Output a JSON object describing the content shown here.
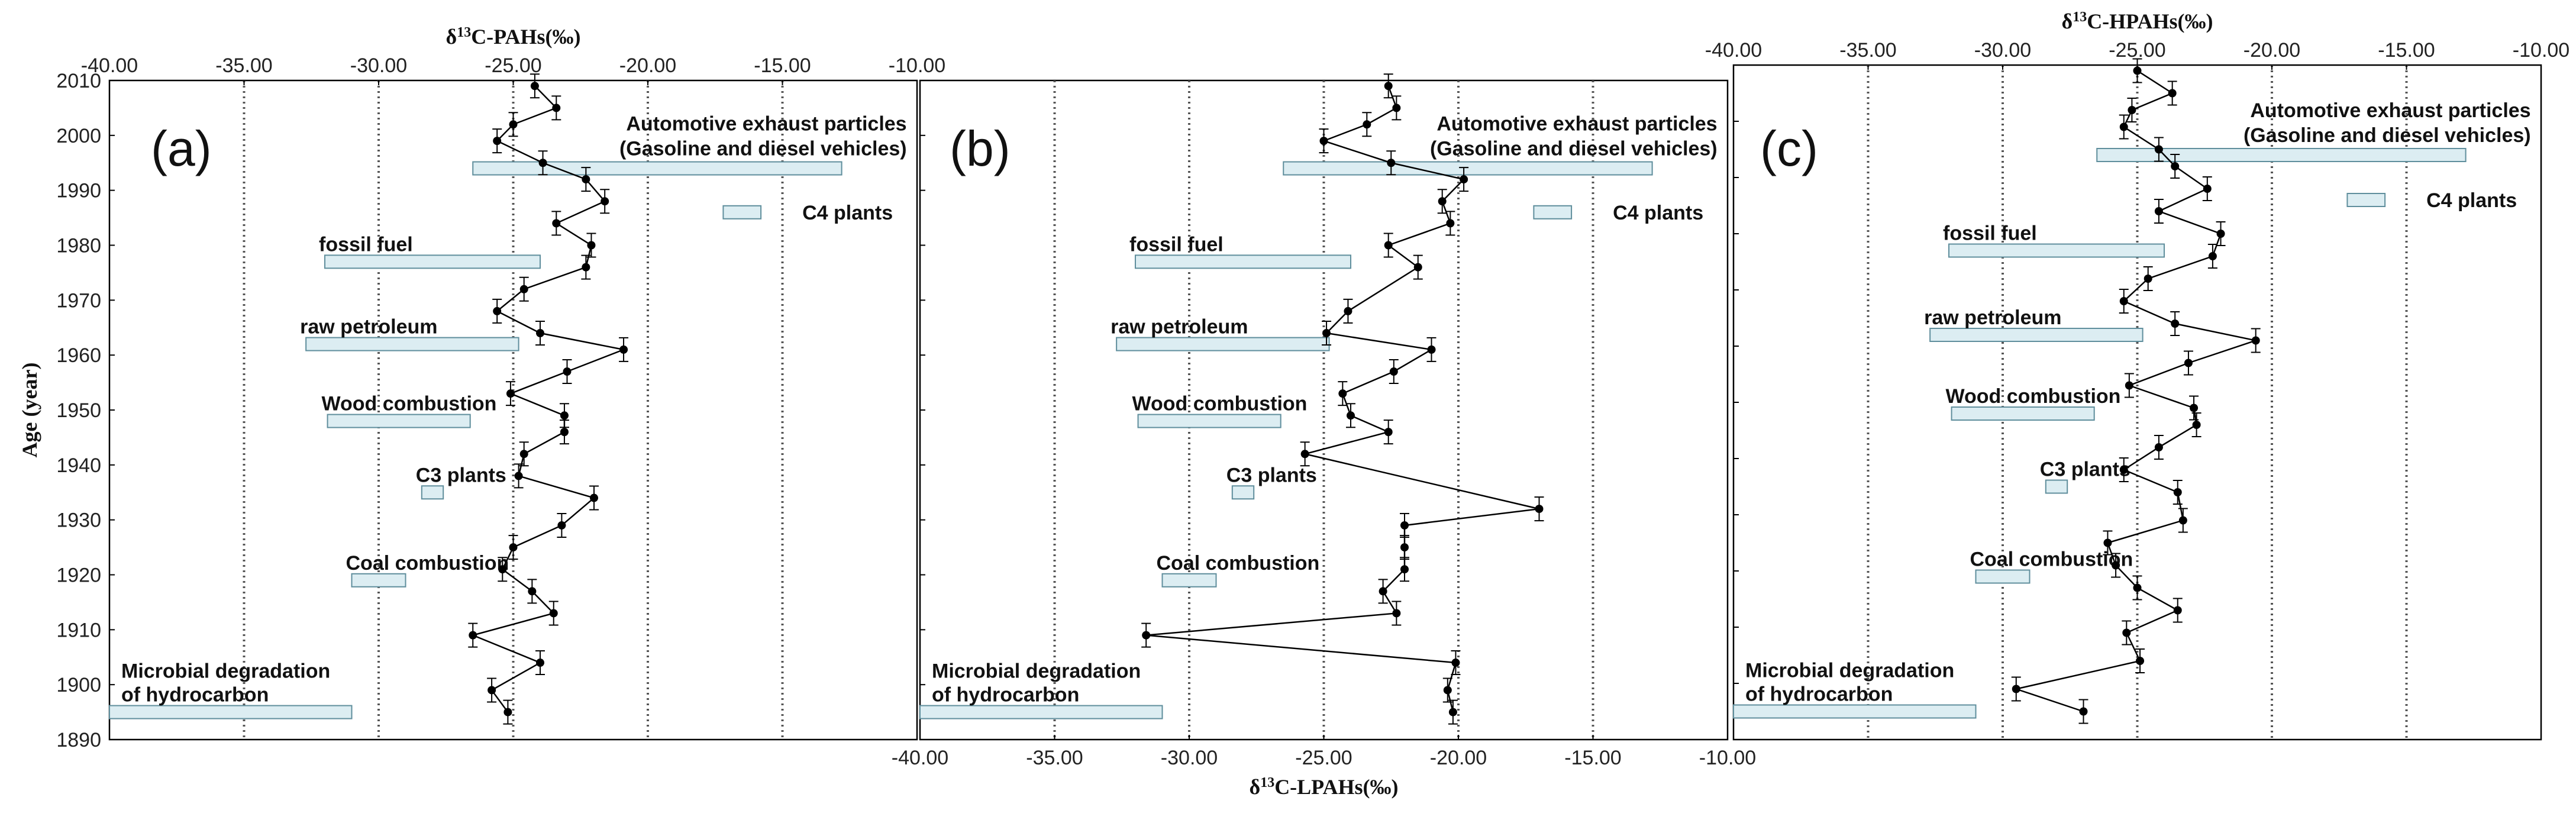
{
  "figure": {
    "y_axis_label": "Age (year)",
    "x_label_top_a": "δ13C-PAHs(‰)",
    "x_label_bottom_b": "δ13C-LPAHs(‰)",
    "x_label_top_c": "δ13C-HPAHs(‰)"
  },
  "colors": {
    "source_fill": "#dcedf2",
    "source_stroke": "#5f8e9c",
    "series": "#000000",
    "gridline": "#555555"
  },
  "chart_data": [
    {
      "type": "line",
      "panel": "(a)",
      "xlabel": "δ13C-PAHs(‰)",
      "xlabel_position": "top",
      "ylabel": "Age (year)",
      "xlim": [
        -40,
        -10
      ],
      "ylim": [
        1890,
        2010
      ],
      "x_ticks": [
        "-40.00",
        "-35.00",
        "-30.00",
        "-25.00",
        "-20.00",
        "-15.00",
        "-10.00"
      ],
      "y_ticks": [
        "2010",
        "2000",
        "1990",
        "1980",
        "1970",
        "1960",
        "1950",
        "1940",
        "1930",
        "1920",
        "1910",
        "1900",
        "1890"
      ],
      "series": [
        {
          "name": "δ13C-PAHs",
          "points": [
            {
              "year": 2009,
              "value": -24.2,
              "err": 0.3
            },
            {
              "year": 2005,
              "value": -23.4,
              "err": 0.4
            },
            {
              "year": 2002,
              "value": -25.0,
              "err": 0.3
            },
            {
              "year": 1999,
              "value": -25.6,
              "err": 0.3
            },
            {
              "year": 1995,
              "value": -23.9,
              "err": 0.3
            },
            {
              "year": 1992,
              "value": -22.3,
              "err": 0.3
            },
            {
              "year": 1988,
              "value": -21.6,
              "err": 0.4
            },
            {
              "year": 1984,
              "value": -23.4,
              "err": 0.3
            },
            {
              "year": 1980,
              "value": -22.1,
              "err": 0.3
            },
            {
              "year": 1976,
              "value": -22.3,
              "err": 0.3
            },
            {
              "year": 1972,
              "value": -24.6,
              "err": 0.3
            },
            {
              "year": 1968,
              "value": -25.6,
              "err": 0.3
            },
            {
              "year": 1964,
              "value": -24.0,
              "err": 0.4
            },
            {
              "year": 1961,
              "value": -20.9,
              "err": 0.4
            },
            {
              "year": 1957,
              "value": -23.0,
              "err": 0.3
            },
            {
              "year": 1953,
              "value": -25.1,
              "err": 0.3
            },
            {
              "year": 1949,
              "value": -23.1,
              "err": 0.3
            },
            {
              "year": 1946,
              "value": -23.1,
              "err": 0.3
            },
            {
              "year": 1942,
              "value": -24.6,
              "err": 0.3
            },
            {
              "year": 1938,
              "value": -24.8,
              "err": 0.3
            },
            {
              "year": 1934,
              "value": -22.0,
              "err": 0.4
            },
            {
              "year": 1929,
              "value": -23.2,
              "err": 0.4
            },
            {
              "year": 1925,
              "value": -25.0,
              "err": 0.3
            },
            {
              "year": 1921,
              "value": -25.4,
              "err": 0.3
            },
            {
              "year": 1917,
              "value": -24.3,
              "err": 0.3
            },
            {
              "year": 1913,
              "value": -23.5,
              "err": 0.4
            },
            {
              "year": 1909,
              "value": -26.5,
              "err": 0.4
            },
            {
              "year": 1904,
              "value": -24.0,
              "err": 0.4
            },
            {
              "year": 1899,
              "value": -25.8,
              "err": 0.3
            },
            {
              "year": 1895,
              "value": -25.2,
              "err": 0.3
            }
          ]
        }
      ],
      "sources": [
        {
          "label": "Automotive exhaust particles (Gasoline and diesel vehicles)",
          "label_lines": [
            "Automotive exhaust particles",
            "(Gasoline and diesel vehicles)"
          ],
          "x_min": -26.5,
          "x_max": -12.8,
          "year": 1994,
          "label_anchor": "right-above"
        },
        {
          "label": "C4 plants",
          "label_lines": [
            "C4 plants"
          ],
          "x_min": -17.2,
          "x_max": -15.8,
          "year": 1986,
          "label_anchor": "right-of"
        },
        {
          "label": "fossil fuel",
          "label_lines": [
            "fossil fuel"
          ],
          "x_min": -32.0,
          "x_max": -24.0,
          "year": 1977,
          "label_anchor": "left-above"
        },
        {
          "label": "raw petroleum",
          "label_lines": [
            "raw petroleum"
          ],
          "x_min": -32.7,
          "x_max": -24.8,
          "year": 1962,
          "label_anchor": "left-above"
        },
        {
          "label": "Wood combustion",
          "label_lines": [
            "Wood combustion"
          ],
          "x_min": -31.9,
          "x_max": -26.6,
          "year": 1948,
          "label_anchor": "left-above"
        },
        {
          "label": "C3 plants",
          "label_lines": [
            "C3 plants"
          ],
          "x_min": -28.4,
          "x_max": -27.6,
          "year": 1935,
          "label_anchor": "left-above"
        },
        {
          "label": "Coal combustion",
          "label_lines": [
            "Coal combustion"
          ],
          "x_min": -31.0,
          "x_max": -29.0,
          "year": 1919,
          "label_anchor": "left-above"
        },
        {
          "label": "Microbial degradation of hydrocarbon",
          "label_lines": [
            "Microbial degradation",
            "of hydrocarbon"
          ],
          "x_min": -40.0,
          "x_max": -31.0,
          "year": 1895,
          "label_anchor": "left-above"
        }
      ]
    },
    {
      "type": "line",
      "panel": "(b)",
      "xlabel": "δ13C-LPAHs(‰)",
      "xlabel_position": "bottom",
      "xlim": [
        -40,
        -10
      ],
      "ylim": [
        1890,
        2010
      ],
      "x_ticks": [
        "-40.00",
        "-35.00",
        "-30.00",
        "-25.00",
        "-20.00",
        "-15.00",
        "-10.00"
      ],
      "series": [
        {
          "name": "δ13C-LPAHs",
          "points": [
            {
              "year": 2009,
              "value": -22.6,
              "err": 0.3
            },
            {
              "year": 2005,
              "value": -22.3,
              "err": 0.4
            },
            {
              "year": 2002,
              "value": -23.4,
              "err": 0.3
            },
            {
              "year": 1999,
              "value": -25.0,
              "err": 0.3
            },
            {
              "year": 1995,
              "value": -22.5,
              "err": 0.3
            },
            {
              "year": 1992,
              "value": -19.8,
              "err": 0.3
            },
            {
              "year": 1988,
              "value": -20.6,
              "err": 0.3
            },
            {
              "year": 1984,
              "value": -20.3,
              "err": 0.3
            },
            {
              "year": 1980,
              "value": -22.6,
              "err": 0.3
            },
            {
              "year": 1976,
              "value": -21.5,
              "err": 0.3
            },
            {
              "year": 1968,
              "value": -24.1,
              "err": 0.3
            },
            {
              "year": 1964,
              "value": -24.9,
              "err": 0.3
            },
            {
              "year": 1961,
              "value": -21.0,
              "err": 0.4
            },
            {
              "year": 1957,
              "value": -22.4,
              "err": 0.4
            },
            {
              "year": 1953,
              "value": -24.3,
              "err": 0.3
            },
            {
              "year": 1949,
              "value": -24.0,
              "err": 0.3
            },
            {
              "year": 1946,
              "value": -22.6,
              "err": 0.4
            },
            {
              "year": 1942,
              "value": -25.7,
              "err": 0.3
            },
            {
              "year": 1932,
              "value": -17.0,
              "err": 0.4
            },
            {
              "year": 1929,
              "value": -22.0,
              "err": 0.3
            },
            {
              "year": 1925,
              "value": -22.0,
              "err": 0.3
            },
            {
              "year": 1921,
              "value": -22.0,
              "err": 0.3
            },
            {
              "year": 1917,
              "value": -22.8,
              "err": 0.3
            },
            {
              "year": 1913,
              "value": -22.3,
              "err": 0.4
            },
            {
              "year": 1909,
              "value": -31.6,
              "err": 0.4
            },
            {
              "year": 1904,
              "value": -20.1,
              "err": 0.3
            },
            {
              "year": 1899,
              "value": -20.4,
              "err": 0.3
            },
            {
              "year": 1895,
              "value": -20.2,
              "err": 0.3
            }
          ]
        }
      ],
      "sources": [
        {
          "label": "Automotive exhaust particles (Gasoline and diesel vehicles)",
          "label_lines": [
            "Automotive exhaust particles",
            "(Gasoline and diesel vehicles)"
          ],
          "x_min": -26.5,
          "x_max": -12.8,
          "year": 1994,
          "label_anchor": "right-above"
        },
        {
          "label": "C4 plants",
          "label_lines": [
            "C4 plants"
          ],
          "x_min": -17.2,
          "x_max": -15.8,
          "year": 1986,
          "label_anchor": "right-of"
        },
        {
          "label": "fossil fuel",
          "label_lines": [
            "fossil fuel"
          ],
          "x_min": -32.0,
          "x_max": -24.0,
          "year": 1977,
          "label_anchor": "left-above"
        },
        {
          "label": "raw petroleum",
          "label_lines": [
            "raw petroleum"
          ],
          "x_min": -32.7,
          "x_max": -24.8,
          "year": 1962,
          "label_anchor": "left-above"
        },
        {
          "label": "Wood combustion",
          "label_lines": [
            "Wood combustion"
          ],
          "x_min": -31.9,
          "x_max": -26.6,
          "year": 1948,
          "label_anchor": "left-above"
        },
        {
          "label": "C3 plants",
          "label_lines": [
            "C3 plants"
          ],
          "x_min": -28.4,
          "x_max": -27.6,
          "year": 1935,
          "label_anchor": "left-above"
        },
        {
          "label": "Coal combustion",
          "label_lines": [
            "Coal combustion"
          ],
          "x_min": -31.0,
          "x_max": -29.0,
          "year": 1919,
          "label_anchor": "left-above"
        },
        {
          "label": "Microbial degradation of hydrocarbon",
          "label_lines": [
            "Microbial degradation",
            "of hydrocarbon"
          ],
          "x_min": -40.0,
          "x_max": -31.0,
          "year": 1895,
          "label_anchor": "left-above"
        }
      ]
    },
    {
      "type": "line",
      "panel": "(c)",
      "xlabel": "δ13C-HPAHs(‰)",
      "xlabel_position": "top",
      "xlim": [
        -40,
        -10
      ],
      "ylim": [
        1890,
        2010
      ],
      "x_ticks": [
        "-40.00",
        "-35.00",
        "-30.00",
        "-25.00",
        "-20.00",
        "-15.00",
        "-10.00"
      ],
      "series": [
        {
          "name": "δ13C-HPAHs",
          "points": [
            {
              "year": 2009,
              "value": -25.0,
              "err": 0.3
            },
            {
              "year": 2005,
              "value": -23.7,
              "err": 0.4
            },
            {
              "year": 2002,
              "value": -25.2,
              "err": 0.3
            },
            {
              "year": 1999,
              "value": -25.5,
              "err": 0.3
            },
            {
              "year": 1995,
              "value": -24.2,
              "err": 0.3
            },
            {
              "year": 1992,
              "value": -23.6,
              "err": 0.3
            },
            {
              "year": 1988,
              "value": -22.4,
              "err": 0.4
            },
            {
              "year": 1984,
              "value": -24.2,
              "err": 0.3
            },
            {
              "year": 1980,
              "value": -21.9,
              "err": 0.3
            },
            {
              "year": 1976,
              "value": -22.2,
              "err": 0.3
            },
            {
              "year": 1972,
              "value": -24.6,
              "err": 0.3
            },
            {
              "year": 1968,
              "value": -25.5,
              "err": 0.3
            },
            {
              "year": 1964,
              "value": -23.6,
              "err": 0.4
            },
            {
              "year": 1961,
              "value": -20.6,
              "err": 0.4
            },
            {
              "year": 1957,
              "value": -23.1,
              "err": 0.4
            },
            {
              "year": 1953,
              "value": -25.3,
              "err": 0.3
            },
            {
              "year": 1949,
              "value": -22.9,
              "err": 0.3
            },
            {
              "year": 1946,
              "value": -22.8,
              "err": 0.3
            },
            {
              "year": 1942,
              "value": -24.2,
              "err": 0.3
            },
            {
              "year": 1938,
              "value": -25.5,
              "err": 0.3
            },
            {
              "year": 1934,
              "value": -23.5,
              "err": 0.4
            },
            {
              "year": 1929,
              "value": -23.3,
              "err": 0.3
            },
            {
              "year": 1925,
              "value": -26.1,
              "err": 0.3
            },
            {
              "year": 1921,
              "value": -25.8,
              "err": 0.3
            },
            {
              "year": 1917,
              "value": -25.0,
              "err": 0.3
            },
            {
              "year": 1913,
              "value": -23.5,
              "err": 0.4
            },
            {
              "year": 1909,
              "value": -25.4,
              "err": 0.3
            },
            {
              "year": 1904,
              "value": -24.9,
              "err": 0.3
            },
            {
              "year": 1899,
              "value": -29.5,
              "err": 0.4
            },
            {
              "year": 1895,
              "value": -27.0,
              "err": 0.4
            }
          ]
        }
      ],
      "sources": [
        {
          "label": "Automotive exhaust particles (Gasoline and diesel vehicles)",
          "label_lines": [
            "Automotive exhaust particles",
            "(Gasoline and diesel vehicles)"
          ],
          "x_min": -26.5,
          "x_max": -12.8,
          "year": 1994,
          "label_anchor": "right-above"
        },
        {
          "label": "C4 plants",
          "label_lines": [
            "C4 plants"
          ],
          "x_min": -17.2,
          "x_max": -15.8,
          "year": 1986,
          "label_anchor": "right-of"
        },
        {
          "label": "fossil fuel",
          "label_lines": [
            "fossil fuel"
          ],
          "x_min": -32.0,
          "x_max": -24.0,
          "year": 1977,
          "label_anchor": "left-above"
        },
        {
          "label": "raw petroleum",
          "label_lines": [
            "raw petroleum"
          ],
          "x_min": -32.7,
          "x_max": -24.8,
          "year": 1962,
          "label_anchor": "left-above"
        },
        {
          "label": "Wood combustion",
          "label_lines": [
            "Wood combustion"
          ],
          "x_min": -31.9,
          "x_max": -26.6,
          "year": 1948,
          "label_anchor": "left-above"
        },
        {
          "label": "C3 plants",
          "label_lines": [
            "C3 plants"
          ],
          "x_min": -28.4,
          "x_max": -27.6,
          "year": 1935,
          "label_anchor": "left-above"
        },
        {
          "label": "Coal combustion",
          "label_lines": [
            "Coal combustion"
          ],
          "x_min": -31.0,
          "x_max": -29.0,
          "year": 1919,
          "label_anchor": "left-above"
        },
        {
          "label": "Microbial degradation of hydrocarbon",
          "label_lines": [
            "Microbial degradation",
            "of hydrocarbon"
          ],
          "x_min": -40.0,
          "x_max": -31.0,
          "year": 1895,
          "label_anchor": "left-above"
        }
      ]
    }
  ]
}
